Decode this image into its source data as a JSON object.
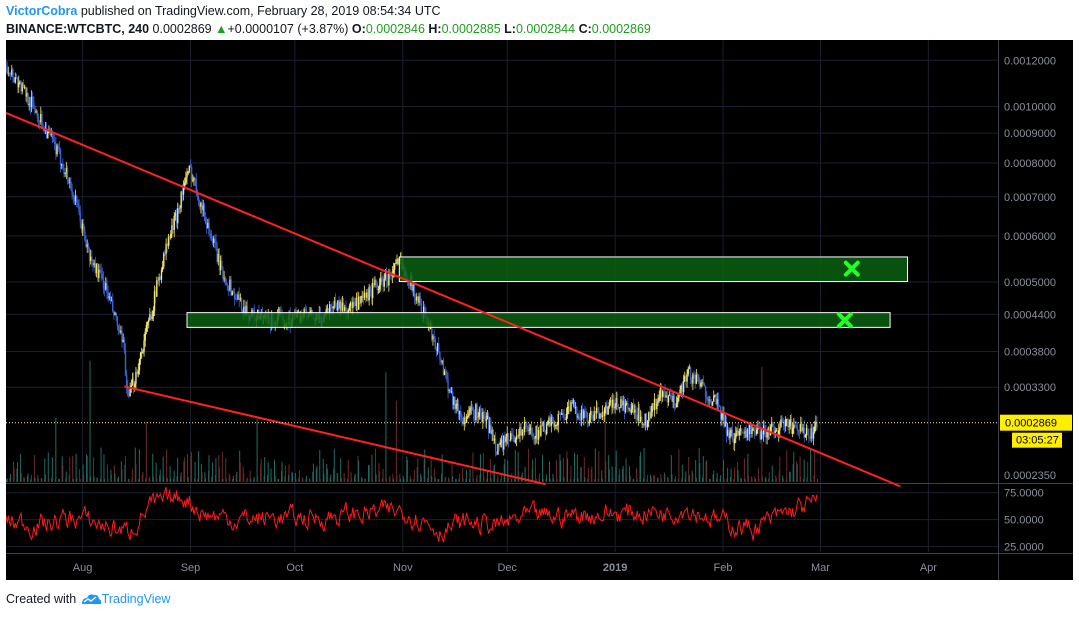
{
  "header": {
    "author": "VictorCobra",
    "published_text": "published on TradingView.com, February 28, 2019 08:54:34 UTC",
    "symbol": "BINANCE:WTCBTC, 240",
    "last": "0.0002869",
    "change": "+0.0000107 (+3.87%)",
    "o_label": "O:",
    "o_value": "0.0002846",
    "h_label": "H:",
    "h_value": "0.0002885",
    "l_label": "L:",
    "l_value": "0.0002844",
    "c_label": "C:",
    "c_value": "0.0002869"
  },
  "footer": {
    "created_text": "Created with",
    "brand": "TradingView"
  },
  "colors": {
    "background": "#000000",
    "candle_up": "#f7e96b",
    "candle_down": "#3b63d9",
    "trendline": "#ff2222",
    "zone_fill": "#0b5f10",
    "zone_border": "#ffffff",
    "cross": "#22ff22",
    "price_label_bg": "#ffee00",
    "rsi_line": "#ff1a1a",
    "volume": "#1f6b63"
  },
  "chart_data": {
    "type": "line",
    "title": "",
    "y_scale": "log",
    "price_axis": [
      "0.0012000",
      "0.0010000",
      "0.0009000",
      "0.0008000",
      "0.0007000",
      "0.0006000",
      "0.0005000",
      "0.0004400",
      "0.0003800",
      "0.0003300",
      "0.0002869"
    ],
    "x_axis": [
      "Aug",
      "Sep",
      "Oct",
      "Nov",
      "Dec",
      "2019",
      "Feb",
      "Mar",
      "Apr"
    ],
    "current_price_label": "0.0002869",
    "countdown_label": "03:05:27",
    "partial_axis_label": "0.0002350",
    "price_series": {
      "name": "",
      "x": [
        "2018-07-10",
        "2018-07-17",
        "2018-07-22",
        "2018-07-27",
        "2018-07-31",
        "2018-08-03",
        "2018-08-07",
        "2018-08-10",
        "2018-08-13",
        "2018-08-14",
        "2018-08-17",
        "2018-08-21",
        "2018-08-25",
        "2018-08-28",
        "2018-08-30",
        "2018-09-01",
        "2018-09-05",
        "2018-09-10",
        "2018-09-14",
        "2018-09-18",
        "2018-09-23",
        "2018-09-28",
        "2018-10-03",
        "2018-10-08",
        "2018-10-12",
        "2018-10-16",
        "2018-10-20",
        "2018-10-24",
        "2018-10-28",
        "2018-10-31",
        "2018-11-02",
        "2018-11-05",
        "2018-11-10",
        "2018-11-13",
        "2018-11-15",
        "2018-11-18",
        "2018-11-22",
        "2018-11-25",
        "2018-11-28",
        "2018-12-02",
        "2018-12-06",
        "2018-12-10",
        "2018-12-15",
        "2018-12-20",
        "2018-12-24",
        "2018-12-28",
        "2019-01-02",
        "2019-01-06",
        "2019-01-10",
        "2019-01-14",
        "2019-01-18",
        "2019-01-22",
        "2019-01-26",
        "2019-01-30",
        "2019-02-03",
        "2019-02-07",
        "2019-02-11",
        "2019-02-15",
        "2019-02-19",
        "2019-02-23",
        "2019-02-26",
        "2019-02-28"
      ],
      "y": [
        0.00118,
        0.00102,
        0.0009,
        0.00078,
        0.00065,
        0.00055,
        0.0005,
        0.00044,
        0.00038,
        0.00031,
        0.00036,
        0.00045,
        0.00057,
        0.00065,
        0.00073,
        0.00078,
        0.00065,
        0.00052,
        0.00047,
        0.00044,
        0.00043,
        0.00043,
        0.00044,
        0.00043,
        0.00046,
        0.00045,
        0.00046,
        0.00049,
        0.00051,
        0.00054,
        0.00052,
        0.00047,
        0.0004,
        0.00035,
        0.00032,
        0.00029,
        0.0003,
        0.00029,
        0.00026,
        0.00027,
        0.00028,
        0.000275,
        0.00029,
        0.000305,
        0.00029,
        0.0003,
        0.00031,
        0.0003,
        0.00029,
        0.00032,
        0.00031,
        0.00035,
        0.00033,
        0.00031,
        0.00027,
        0.00028,
        0.000275,
        0.00028,
        0.000285,
        0.00028,
        0.00027,
        0.0002869
      ]
    },
    "trendlines": [
      {
        "name": "",
        "x": [
          "2018-07-10",
          "2019-03-24"
        ],
        "y": [
          0.000975,
          0.000223
        ]
      },
      {
        "name": "",
        "x": [
          "2018-08-13",
          "2018-12-12"
        ],
        "y": [
          0.000331,
          0.000225
        ]
      }
    ],
    "zones": [
      {
        "name": "",
        "x": [
          "2018-10-31",
          "2019-03-26"
        ],
        "y": [
          0.000501,
          0.000552
        ]
      },
      {
        "name": "",
        "x": [
          "2018-08-31",
          "2019-03-21"
        ],
        "y": [
          0.000418,
          0.000443
        ]
      }
    ],
    "markers": [
      {
        "type": "cross",
        "x": "2019-03-10",
        "y": 0.000527
      },
      {
        "type": "cross",
        "x": "2019-03-08",
        "y": 0.00043
      }
    ],
    "rsi": {
      "axis_labels": [
        "75.0000",
        "50.0000",
        "25.0000"
      ],
      "ylim": [
        20,
        82
      ],
      "x": [
        "2018-07-10",
        "2018-07-20",
        "2018-07-30",
        "2018-08-08",
        "2018-08-14",
        "2018-08-20",
        "2018-08-25",
        "2018-08-30",
        "2018-09-05",
        "2018-09-15",
        "2018-09-25",
        "2018-10-05",
        "2018-10-15",
        "2018-10-25",
        "2018-11-02",
        "2018-11-12",
        "2018-11-20",
        "2018-11-28",
        "2018-12-06",
        "2018-12-15",
        "2018-12-25",
        "2019-01-04",
        "2019-01-14",
        "2019-01-22",
        "2019-02-01",
        "2019-02-10",
        "2019-02-18",
        "2019-02-24",
        "2019-02-28"
      ],
      "y": [
        48,
        45,
        52,
        44,
        38,
        62,
        66,
        72,
        55,
        50,
        52,
        51,
        54,
        57,
        58,
        40,
        48,
        44,
        52,
        53,
        55,
        56,
        57,
        61,
        47,
        42,
        54,
        62,
        65
      ]
    }
  }
}
